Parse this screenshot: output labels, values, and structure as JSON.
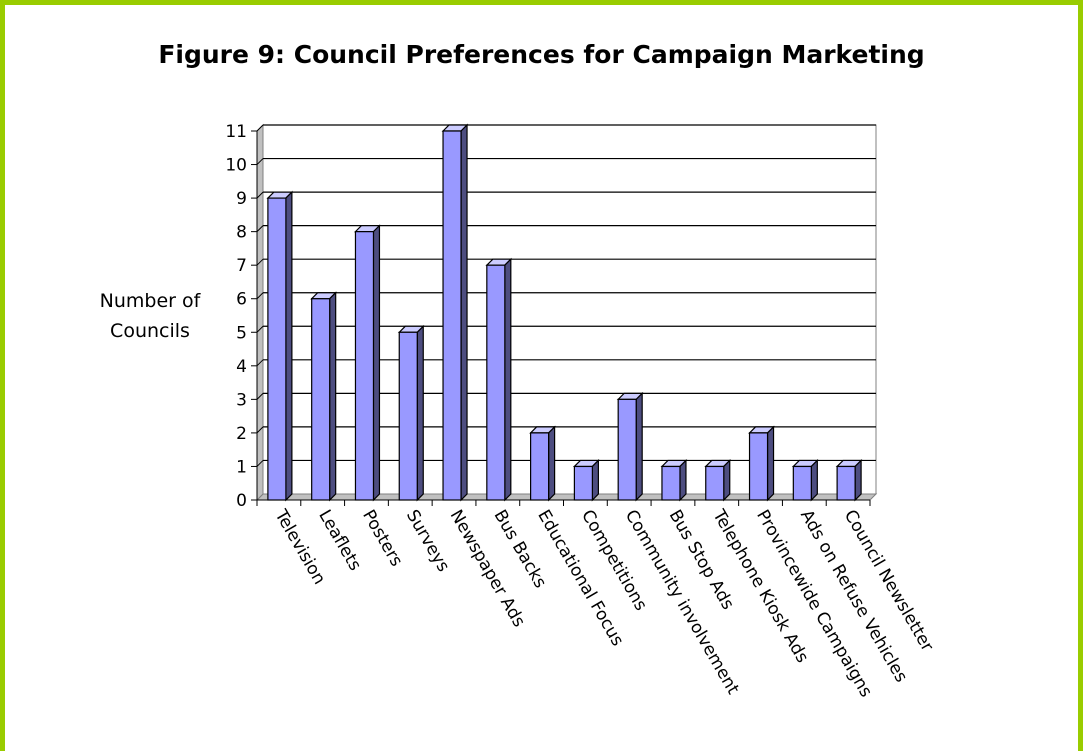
{
  "chart_data": {
    "type": "bar",
    "title": "Figure 9: Council Preferences for Campaign Marketing",
    "ylabel": "Number of Councils",
    "xlabel": "",
    "categories": [
      "Television",
      "Leaflets",
      "Posters",
      "Surveys",
      "Newspaper Ads",
      "Bus Backs",
      "Educational Focus",
      "Competitions",
      "Community involvement",
      "Bus Stop Ads",
      "Telephone Kiosk Ads",
      "Provincewide Campaigns",
      "Ads on Refuse Vehicles",
      "Council Newsletter"
    ],
    "values": [
      9,
      6,
      8,
      5,
      11,
      7,
      2,
      1,
      3,
      1,
      1,
      2,
      1,
      1
    ],
    "ylim": [
      0,
      11
    ],
    "yticks": [
      0,
      1,
      2,
      3,
      4,
      5,
      6,
      7,
      8,
      9,
      10,
      11
    ],
    "grid": true,
    "legend": "none",
    "bar_color": "#9999ff",
    "frame_color": "#99cc00"
  }
}
